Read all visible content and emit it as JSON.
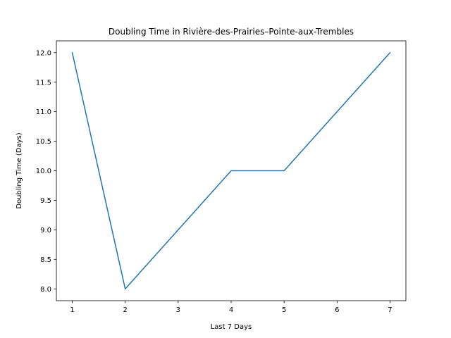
{
  "chart_data": {
    "type": "line",
    "title": "Doubling Time in  Rivière-des-Prairies–Pointe-aux-Trembles",
    "xlabel": "Last 7 Days",
    "ylabel": "Doubling Time (Days)",
    "x": [
      1,
      2,
      3,
      4,
      5,
      6,
      7
    ],
    "series": [
      {
        "values": [
          12,
          8,
          9,
          10,
          10,
          11,
          12
        ],
        "color": "#1f77b4"
      }
    ],
    "xticks": [
      "1",
      "2",
      "3",
      "4",
      "5",
      "6",
      "7"
    ],
    "yticks": [
      "8.0",
      "8.5",
      "9.0",
      "9.5",
      "10.0",
      "10.5",
      "11.0",
      "11.5",
      "12.0"
    ],
    "xlim": [
      0.7,
      7.3
    ],
    "ylim": [
      7.8,
      12.2
    ],
    "grid": false,
    "legend": "none"
  }
}
